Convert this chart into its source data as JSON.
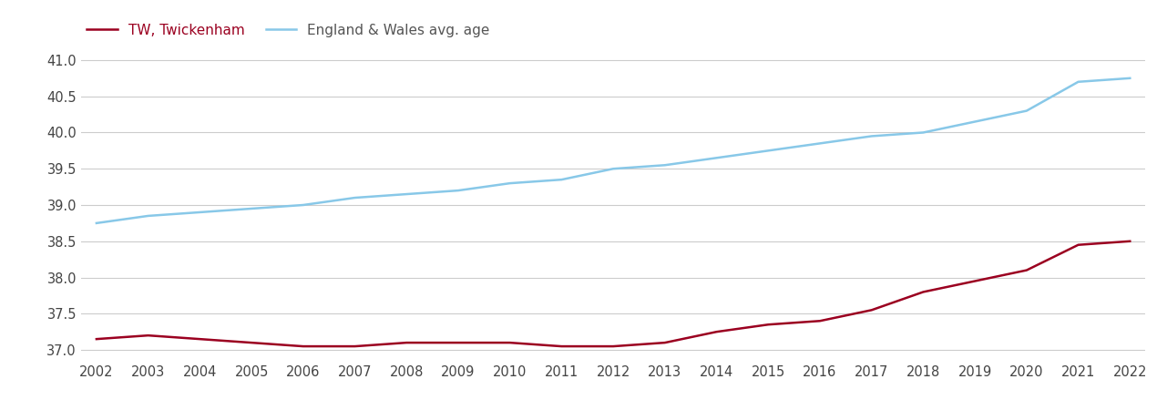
{
  "years": [
    2002,
    2003,
    2004,
    2005,
    2006,
    2007,
    2008,
    2009,
    2010,
    2011,
    2012,
    2013,
    2014,
    2015,
    2016,
    2017,
    2018,
    2019,
    2020,
    2021,
    2022
  ],
  "twickenham": [
    37.15,
    37.2,
    37.15,
    37.1,
    37.05,
    37.05,
    37.1,
    37.1,
    37.1,
    37.05,
    37.05,
    37.1,
    37.25,
    37.35,
    37.4,
    37.55,
    37.8,
    37.95,
    38.1,
    38.45,
    38.5
  ],
  "england_wales": [
    38.75,
    38.85,
    38.9,
    38.95,
    39.0,
    39.1,
    39.15,
    39.2,
    39.3,
    39.35,
    39.5,
    39.55,
    39.65,
    39.75,
    39.85,
    39.95,
    40.0,
    40.15,
    40.3,
    40.7,
    40.75
  ],
  "tw_color": "#9b0020",
  "ew_color": "#88c8e8",
  "tw_label": "TW, Twickenham",
  "ew_label": "England & Wales avg. age",
  "ylim_min": 36.85,
  "ylim_max": 41.15,
  "yticks": [
    37.0,
    37.5,
    38.0,
    38.5,
    39.0,
    39.5,
    40.0,
    40.5,
    41.0
  ],
  "background_color": "#ffffff",
  "grid_color": "#cccccc",
  "line_width": 1.8,
  "tick_label_fontsize": 10.5,
  "legend_fontsize": 11
}
